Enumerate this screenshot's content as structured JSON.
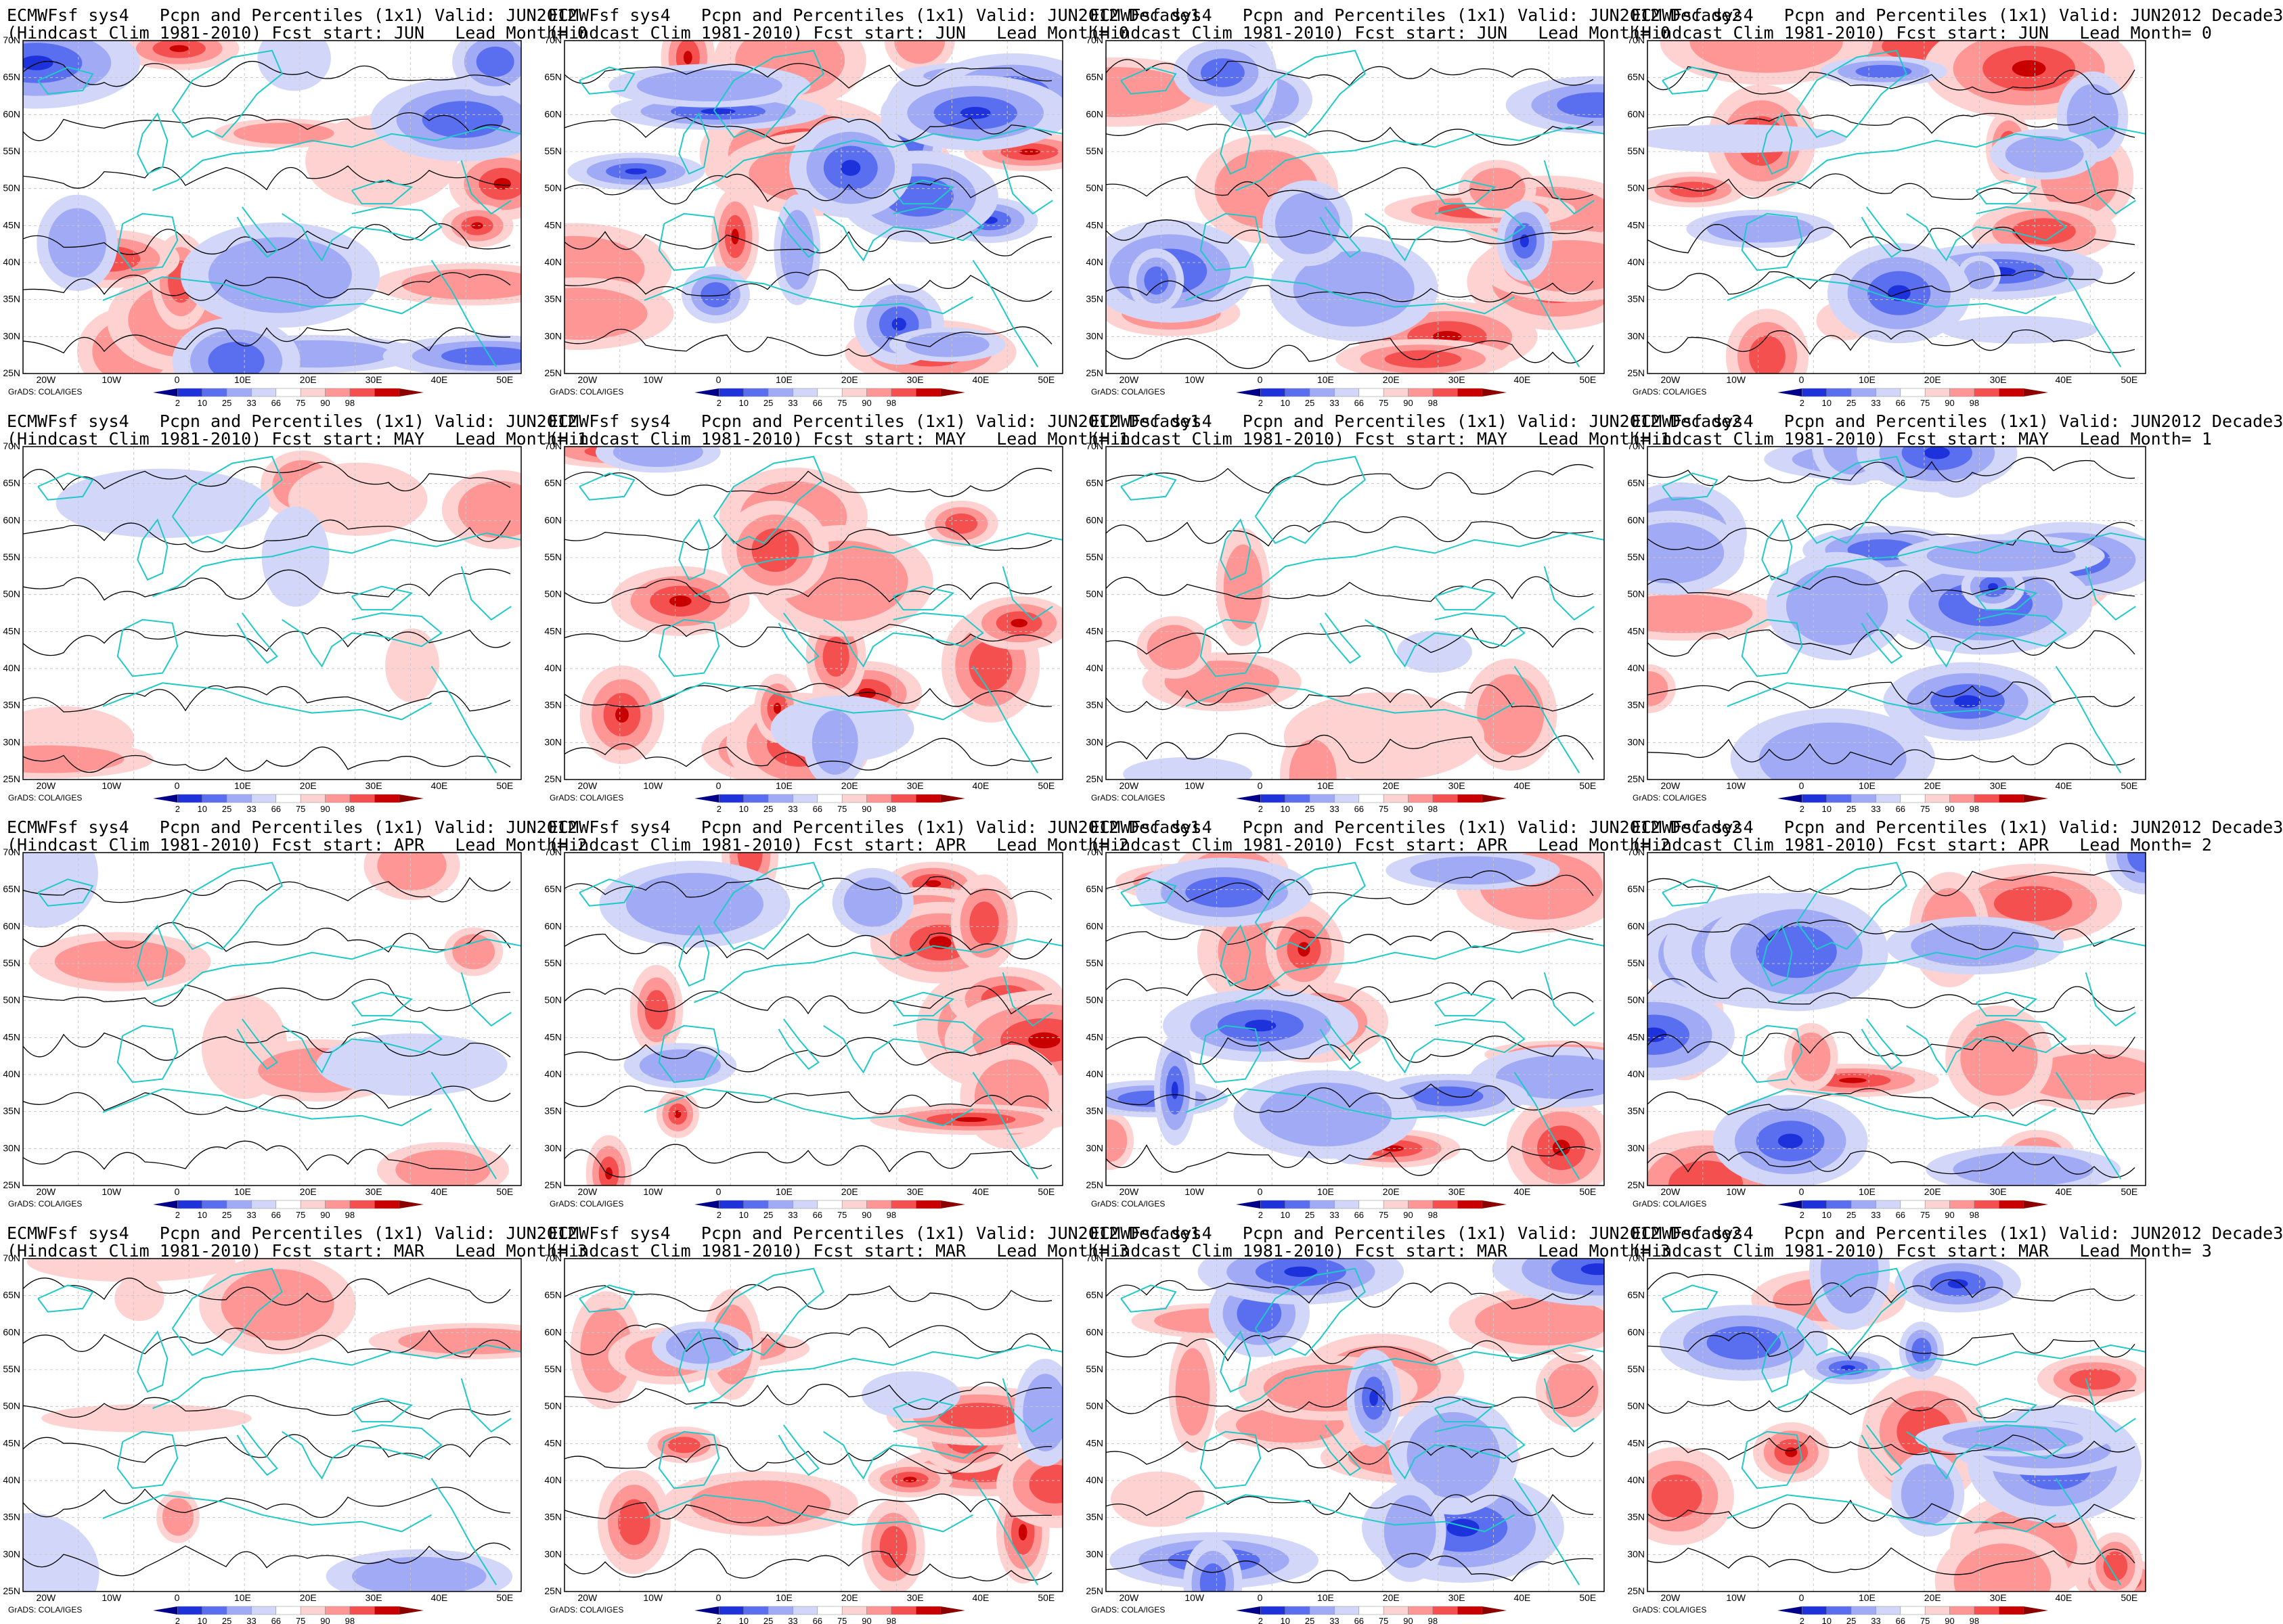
{
  "figure": {
    "model": "ECMWFsf sys4",
    "variable": "Pcpn and Percentiles (1x1)",
    "hindcast": "(Hindcast Clim 1981-2010)",
    "credit": "GrADS: COLA/IGES",
    "lon_labels": [
      "20W",
      "10W",
      "0",
      "10E",
      "20E",
      "30E",
      "40E",
      "50E"
    ],
    "lat_labels": [
      "70N",
      "65N",
      "60N",
      "55N",
      "50N",
      "45N",
      "40N",
      "35N",
      "30N",
      "25N"
    ],
    "colorbar_labels": [
      "2",
      "10",
      "25",
      "33",
      "66",
      "75",
      "90",
      "98"
    ],
    "colorbar_colors": [
      "#00008b",
      "#1e32dc",
      "#5a6ef0",
      "#a0aaf5",
      "#d2d7fa",
      "#ffffff",
      "#ffd2d2",
      "#ff9696",
      "#f55050",
      "#c80000",
      "#8b0000"
    ]
  },
  "panels": [
    {
      "title_line1": "ECMWFsf sys4   Pcpn and Percentiles (1x1) Valid: JUN2012",
      "title_line2": "(Hindcast Clim 1981-2010) Fcst start: JUN   Lead Month= 0",
      "anomaly": "mixed"
    },
    {
      "title_line1": "ECMWFsf sys4   Pcpn and Percentiles (1x1) Valid: JUN2012 Decade1",
      "title_line2": "(Hindcast Clim 1981-2010) Fcst start: JUN   Lead Month= 0",
      "anomaly": "strong"
    },
    {
      "title_line1": "ECMWFsf sys4   Pcpn and Percentiles (1x1) Valid: JUN2012 Decade2",
      "title_line2": "(Hindcast Clim 1981-2010) Fcst start: JUN   Lead Month= 0",
      "anomaly": "mixed"
    },
    {
      "title_line1": "ECMWFsf sys4   Pcpn and Percentiles (1x1) Valid: JUN2012 Decade3",
      "title_line2": "(Hindcast Clim 1981-2010) Fcst start: JUN   Lead Month= 0",
      "anomaly": "mixed"
    },
    {
      "title_line1": "ECMWFsf sys4   Pcpn and Percentiles (1x1) Valid: JUN2012",
      "title_line2": "(Hindcast Clim 1981-2010) Fcst start: MAY   Lead Month= 1",
      "anomaly": "weak"
    },
    {
      "title_line1": "ECMWFsf sys4   Pcpn and Percentiles (1x1) Valid: JUN2012 Decade1",
      "title_line2": "(Hindcast Clim 1981-2010) Fcst start: MAY   Lead Month= 1",
      "anomaly": "wet"
    },
    {
      "title_line1": "ECMWFsf sys4   Pcpn and Percentiles (1x1) Valid: JUN2012 Decade2",
      "title_line2": "(Hindcast Clim 1981-2010) Fcst start: MAY   Lead Month= 1",
      "anomaly": "weak"
    },
    {
      "title_line1": "ECMWFsf sys4   Pcpn and Percentiles (1x1) Valid: JUN2012 Decade3",
      "title_line2": "(Hindcast Clim 1981-2010) Fcst start: MAY   Lead Month= 1",
      "anomaly": "dry"
    },
    {
      "title_line1": "ECMWFsf sys4   Pcpn and Percentiles (1x1) Valid: JUN2012",
      "title_line2": "(Hindcast Clim 1981-2010) Fcst start: APR   Lead Month= 2",
      "anomaly": "weak"
    },
    {
      "title_line1": "ECMWFsf sys4   Pcpn and Percentiles (1x1) Valid: JUN2012 Decade1",
      "title_line2": "(Hindcast Clim 1981-2010) Fcst start: APR   Lead Month= 2",
      "anomaly": "wet"
    },
    {
      "title_line1": "ECMWFsf sys4   Pcpn and Percentiles (1x1) Valid: JUN2012 Decade2",
      "title_line2": "(Hindcast Clim 1981-2010) Fcst start: APR   Lead Month= 2",
      "anomaly": "mixed"
    },
    {
      "title_line1": "ECMWFsf sys4   Pcpn and Percentiles (1x1) Valid: JUN2012 Decade3",
      "title_line2": "(Hindcast Clim 1981-2010) Fcst start: APR   Lead Month= 2",
      "anomaly": "mixed"
    },
    {
      "title_line1": "ECMWFsf sys4   Pcpn and Percentiles (1x1) Valid: JUN2012",
      "title_line2": "(Hindcast Clim 1981-2010) Fcst start: MAR   Lead Month= 3",
      "anomaly": "weak"
    },
    {
      "title_line1": "ECMWFsf sys4   Pcpn and Percentiles (1x1) Valid: JUN2012 Decade1",
      "title_line2": "(Hindcast Clim 1981-2010) Fcst start: MAR   Lead Month= 3",
      "anomaly": "wet"
    },
    {
      "title_line1": "ECMWFsf sys4   Pcpn and Percentiles (1x1) Valid: JUN2012 Decade2",
      "title_line2": "(Hindcast Clim 1981-2010) Fcst start: MAR   Lead Month= 3",
      "anomaly": "mixed"
    },
    {
      "title_line1": "ECMWFsf sys4   Pcpn and Percentiles (1x1) Valid: JUN2012 Decade3",
      "title_line2": "(Hindcast Clim 1981-2010) Fcst start: MAR   Lead Month= 3",
      "anomaly": "mixed"
    }
  ]
}
